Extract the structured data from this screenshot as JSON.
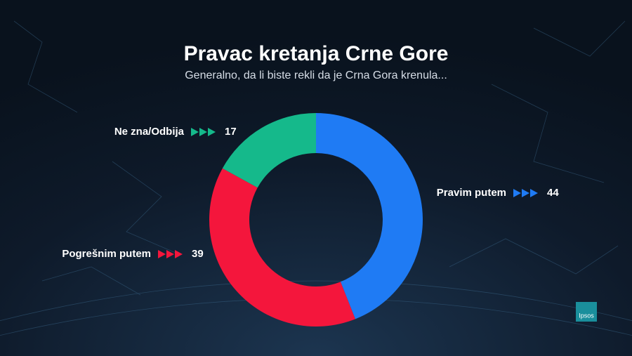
{
  "chart_data": {
    "type": "donut",
    "title": "Pravac kretanja Crne Gore",
    "subtitle": "Generalno, da li biste rekli da je Crna Gora krenula...",
    "categories": [
      "Pravim putem",
      "Pogrešnim putem",
      "Ne zna/Odbija"
    ],
    "values": [
      44,
      39,
      17
    ],
    "colors": [
      "#1f7bf4",
      "#f4163c",
      "#15b98b"
    ]
  },
  "logo": "Ipsos"
}
